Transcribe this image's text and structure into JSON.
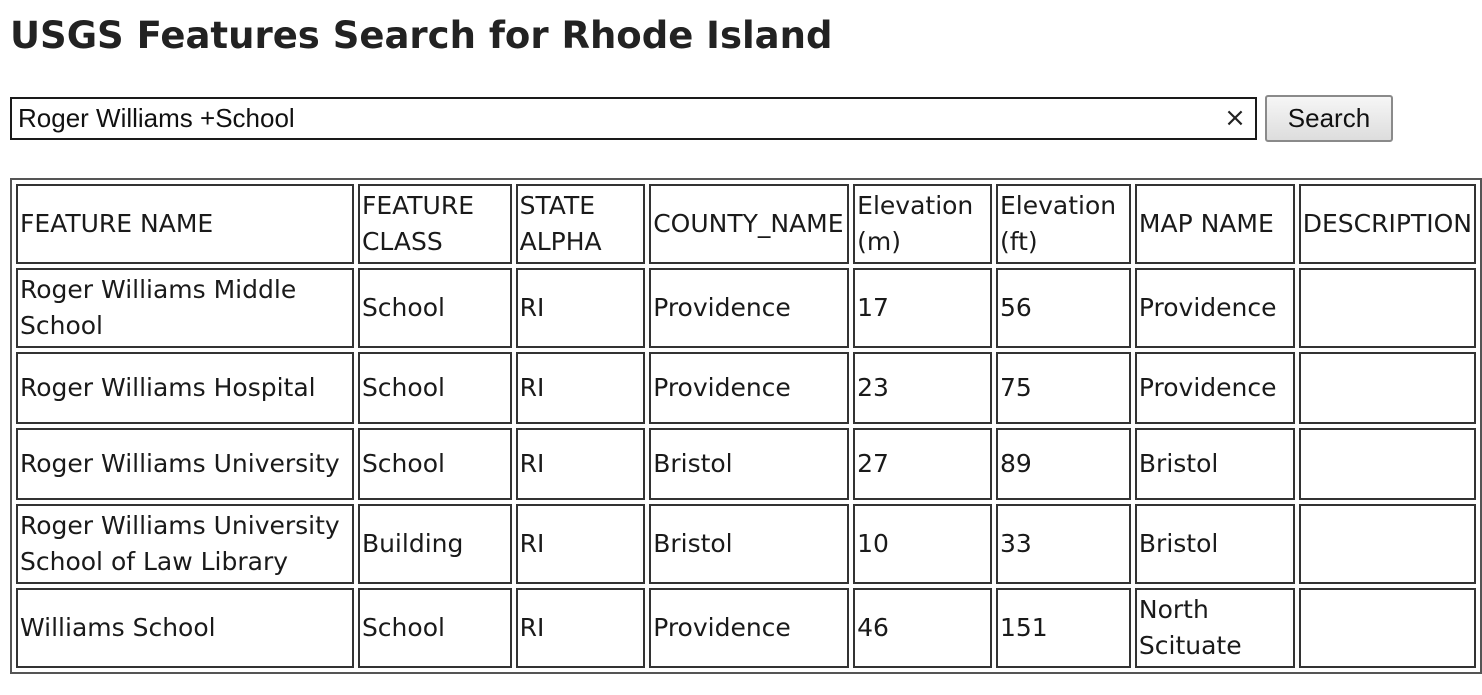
{
  "page": {
    "title": "USGS Features Search for Rhode Island"
  },
  "search": {
    "value": "Roger Williams +School",
    "clear_glyph": "×",
    "button_label": "Search"
  },
  "table": {
    "headers": [
      "FEATURE NAME",
      "FEATURE CLASS",
      "STATE ALPHA",
      "COUNTY_NAME",
      "Elevation (m)",
      "Elevation (ft)",
      "MAP NAME",
      "DESCRIPTION"
    ],
    "rows": [
      [
        "Roger Williams Middle School",
        "School",
        "RI",
        "Providence",
        "17",
        "56",
        "Providence",
        ""
      ],
      [
        "Roger Williams Hospital",
        "School",
        "RI",
        "Providence",
        "23",
        "75",
        "Providence",
        ""
      ],
      [
        "Roger Williams University",
        "School",
        "RI",
        "Bristol",
        "27",
        "89",
        "Bristol",
        ""
      ],
      [
        "Roger Williams University School of Law Library",
        "Building",
        "RI",
        "Bristol",
        "10",
        "33",
        "Bristol",
        ""
      ],
      [
        "Williams School",
        "School",
        "RI",
        "Providence",
        "46",
        "151",
        "North Scituate",
        ""
      ]
    ]
  }
}
